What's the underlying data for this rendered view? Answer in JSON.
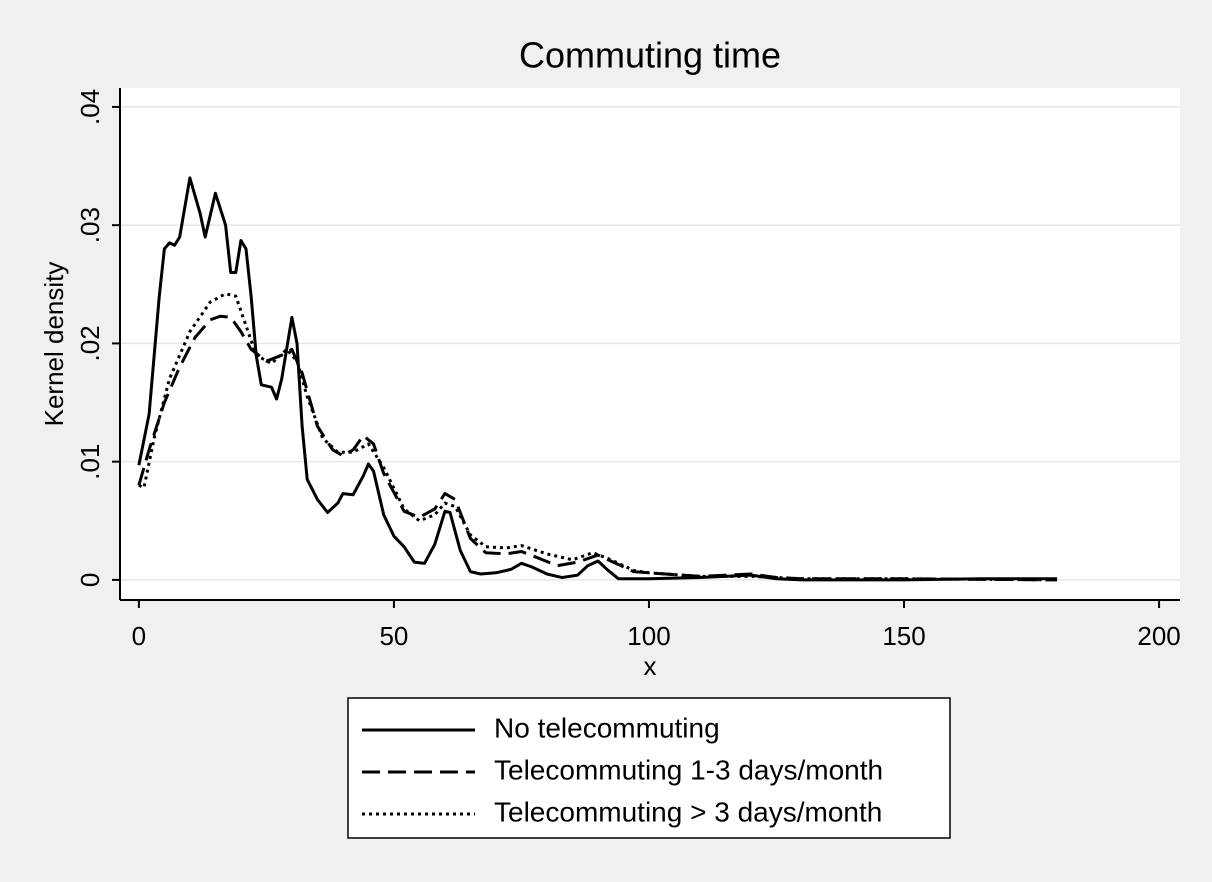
{
  "chart_data": {
    "type": "line",
    "title": "Commuting time",
    "xlabel": "x",
    "ylabel": "Kernel density",
    "xlim": [
      -3.7,
      204.1
    ],
    "ylim": [
      -0.0017,
      0.0416
    ],
    "xticks": [
      0,
      50,
      100,
      150,
      200
    ],
    "yticks": [
      0,
      {
        "value": 0.01,
        "label": ".01"
      },
      {
        "value": 0.02,
        "label": ".02"
      },
      {
        "value": 0.03,
        "label": ".03"
      },
      {
        "value": 0.04,
        "label": ".04"
      }
    ],
    "grid": true,
    "legend": "bottom",
    "series": [
      {
        "name": "No telecommuting",
        "color": "#000000",
        "style": "solid",
        "x": [
          0,
          2,
          4,
          5,
          6,
          7,
          8,
          10,
          12,
          13,
          15,
          17,
          18,
          19,
          20,
          21,
          22,
          23,
          24,
          26,
          27,
          28,
          30,
          31,
          32,
          33,
          35,
          37,
          39,
          40,
          42,
          44,
          45,
          46,
          48,
          50,
          52,
          54,
          56,
          58,
          60,
          61,
          63,
          65,
          67,
          70,
          73,
          75,
          77,
          80,
          83,
          86,
          88,
          90,
          92,
          94,
          100,
          110,
          120,
          125,
          130,
          150,
          165,
          180
        ],
        "values": [
          0.0097,
          0.014,
          0.024,
          0.028,
          0.0285,
          0.0283,
          0.029,
          0.034,
          0.031,
          0.029,
          0.0327,
          0.03,
          0.026,
          0.026,
          0.0287,
          0.028,
          0.024,
          0.019,
          0.0165,
          0.0163,
          0.0153,
          0.017,
          0.0222,
          0.02,
          0.013,
          0.0085,
          0.0068,
          0.0057,
          0.0065,
          0.0073,
          0.0072,
          0.0088,
          0.0098,
          0.0092,
          0.0055,
          0.0037,
          0.0028,
          0.0015,
          0.0014,
          0.003,
          0.0058,
          0.0057,
          0.0025,
          0.0007,
          0.0005,
          0.0006,
          0.0009,
          0.0014,
          0.0011,
          0.0005,
          0.0002,
          0.0004,
          0.0012,
          0.0016,
          0.0008,
          0.0001,
          0.0001,
          0.0002,
          0.0004,
          0.0001,
          0,
          0,
          0.0001,
          0.0001
        ]
      },
      {
        "name": "Telecommuting 1-3 days/month",
        "color": "#000000",
        "style": "dashed",
        "x": [
          0,
          2,
          5,
          8,
          11,
          14,
          16,
          18,
          20,
          22,
          25,
          28,
          30,
          32,
          35,
          38,
          40,
          42,
          44,
          46,
          48,
          52,
          55,
          58,
          60,
          62,
          65,
          68,
          72,
          75,
          78,
          82,
          86,
          90,
          93,
          97,
          100,
          110,
          120,
          125,
          130,
          150,
          180
        ],
        "values": [
          0.008,
          0.011,
          0.015,
          0.018,
          0.0205,
          0.022,
          0.0223,
          0.0222,
          0.021,
          0.0195,
          0.0185,
          0.019,
          0.0195,
          0.0175,
          0.013,
          0.011,
          0.0105,
          0.011,
          0.0122,
          0.0115,
          0.009,
          0.0058,
          0.0053,
          0.006,
          0.0073,
          0.0068,
          0.0035,
          0.0023,
          0.0022,
          0.0024,
          0.0019,
          0.0012,
          0.0015,
          0.0021,
          0.0015,
          0.0007,
          0.0006,
          0.0003,
          0.0005,
          0.0002,
          0.0001,
          0.0001,
          0
        ]
      },
      {
        "name": "Telecommuting > 3 days/month",
        "color": "#000000",
        "style": "dotted",
        "x": [
          0,
          1,
          3,
          6,
          10,
          14,
          17,
          19,
          21,
          23,
          26,
          29,
          31,
          33,
          36,
          39,
          42,
          45,
          48,
          52,
          55,
          58,
          60,
          62,
          65,
          68,
          72,
          75,
          80,
          85,
          89,
          92,
          97,
          100,
          110,
          120,
          130,
          150,
          180
        ],
        "values": [
          0.008,
          0.0078,
          0.012,
          0.017,
          0.021,
          0.0235,
          0.0242,
          0.024,
          0.0215,
          0.019,
          0.0183,
          0.0195,
          0.0185,
          0.0155,
          0.012,
          0.0108,
          0.0108,
          0.0115,
          0.0095,
          0.006,
          0.005,
          0.0055,
          0.0065,
          0.0062,
          0.0038,
          0.0028,
          0.0027,
          0.0029,
          0.0022,
          0.0017,
          0.0023,
          0.0018,
          0.0008,
          0.0006,
          0.0003,
          0.0003,
          0.0001,
          0.0001,
          0
        ]
      }
    ]
  }
}
